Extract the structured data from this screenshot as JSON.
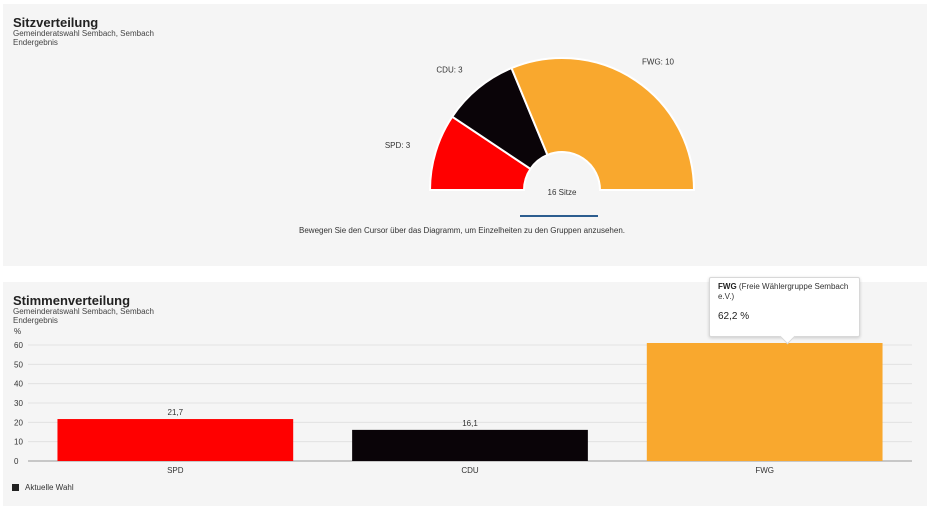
{
  "seats": {
    "title": "Sitzverteilung",
    "subtitle_line1": "Gemeinderatswahl Sembach, Sembach",
    "subtitle_line2": "Endergebnis",
    "total_label": "16 Sitze",
    "hint": "Bewegen Sie den Cursor über das Diagramm, um Einzelheiten zu den Gruppen anzusehen."
  },
  "votes": {
    "title": "Stimmenverteilung",
    "subtitle_line1": "Gemeinderatswahl Sembach, Sembach",
    "subtitle_line2": "Endergebnis",
    "y_unit": "%",
    "legend_label": "Aktuelle Wahl",
    "tooltip": {
      "party": "FWG",
      "party_long": "(Freie Wählergruppe Sembach e.V.)",
      "value": "62,2 %"
    }
  },
  "chart_data": [
    {
      "type": "pie",
      "variant": "semicircle",
      "total": 16,
      "center_label": "16 Sitze",
      "categories": [
        "SPD",
        "CDU",
        "FWG"
      ],
      "values": [
        3,
        3,
        10
      ],
      "labels": [
        "SPD: 3",
        "CDU: 3",
        "FWG: 10"
      ],
      "colors": [
        "#ff0000",
        "#0a0408",
        "#f9a82e"
      ]
    },
    {
      "type": "bar",
      "categories": [
        "SPD",
        "CDU",
        "FWG"
      ],
      "values": [
        21.7,
        16.1,
        62.2
      ],
      "data_labels": [
        "21,7",
        "16,1",
        ""
      ],
      "colors": [
        "#ff0000",
        "#0a0408",
        "#f9a82e"
      ],
      "ylabel": "%",
      "ylim": [
        0,
        60
      ],
      "yticks": [
        0,
        10,
        20,
        30,
        40,
        50,
        60
      ],
      "grid": true,
      "legend": "bottom-left",
      "series": [
        {
          "name": "Aktuelle Wahl",
          "values": [
            21.7,
            16.1,
            62.2
          ]
        }
      ]
    }
  ]
}
